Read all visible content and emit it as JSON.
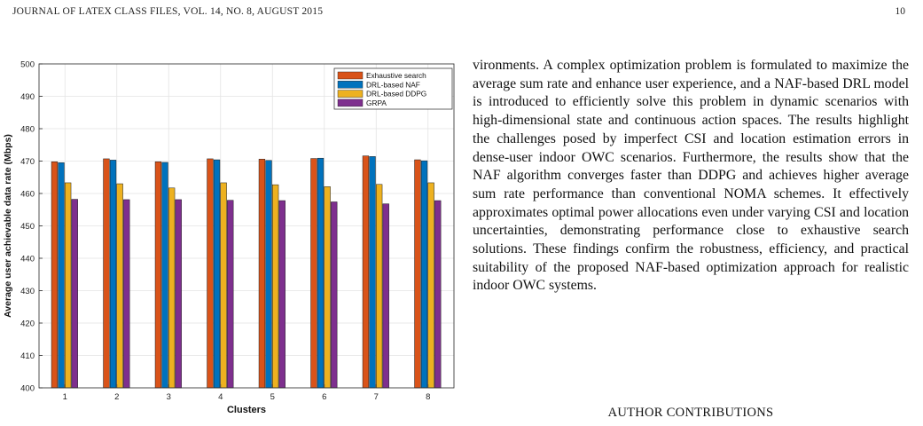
{
  "header": {
    "journal": "JOURNAL OF LATEX CLASS FILES, VOL. 14, NO. 8, AUGUST 2015",
    "page_number": "10"
  },
  "chart_data": {
    "type": "bar",
    "categories": [
      "1",
      "2",
      "3",
      "4",
      "5",
      "6",
      "7",
      "8"
    ],
    "series": [
      {
        "name": "Exhaustive search",
        "color": "#D95319",
        "values": [
          469.8,
          470.7,
          469.8,
          470.7,
          470.6,
          470.8,
          471.6,
          470.4
        ]
      },
      {
        "name": "DRL-based NAF",
        "color": "#0072BD",
        "values": [
          469.5,
          470.3,
          469.6,
          470.4,
          470.2,
          470.9,
          471.4,
          470.1
        ]
      },
      {
        "name": "DRL-based DDPG",
        "color": "#EDB120",
        "values": [
          463.3,
          463.0,
          461.7,
          463.3,
          462.7,
          462.1,
          462.8,
          463.3
        ]
      },
      {
        "name": "GRPA",
        "color": "#7E2F8E",
        "values": [
          458.2,
          458.1,
          458.1,
          457.9,
          457.8,
          457.4,
          456.8,
          457.8
        ]
      }
    ],
    "xlabel": "Clusters",
    "ylabel": "Average user achievable data rate (Mbps)",
    "ylim": [
      400,
      500
    ],
    "yticks": [
      "400",
      "410",
      "420",
      "430",
      "440",
      "450",
      "460",
      "470",
      "480",
      "490",
      "500"
    ],
    "grid": true,
    "legend_position": "top-right"
  },
  "body": {
    "paragraph": "vironments. A complex optimization problem is formulated to maximize the average sum rate and enhance user experience, and a NAF-based DRL model is introduced to efficiently solve this problem in dynamic scenarios with high-dimensional state and continuous action spaces. The results highlight the challenges posed by imperfect CSI and location estimation errors in dense-user indoor OWC scenarios. Furthermore, the results show that the NAF algorithm converges faster than DDPG and achieves higher average sum rate performance than conventional NOMA schemes. It effectively approximates optimal power allocations even under varying CSI and location uncertainties, demonstrating performance close to exhaustive search solutions. These findings confirm the robustness, efficiency, and practical suitability of the proposed NAF-based optimization approach for realistic indoor OWC systems."
  },
  "section": {
    "heading": "AUTHOR CONTRIBUTIONS"
  }
}
